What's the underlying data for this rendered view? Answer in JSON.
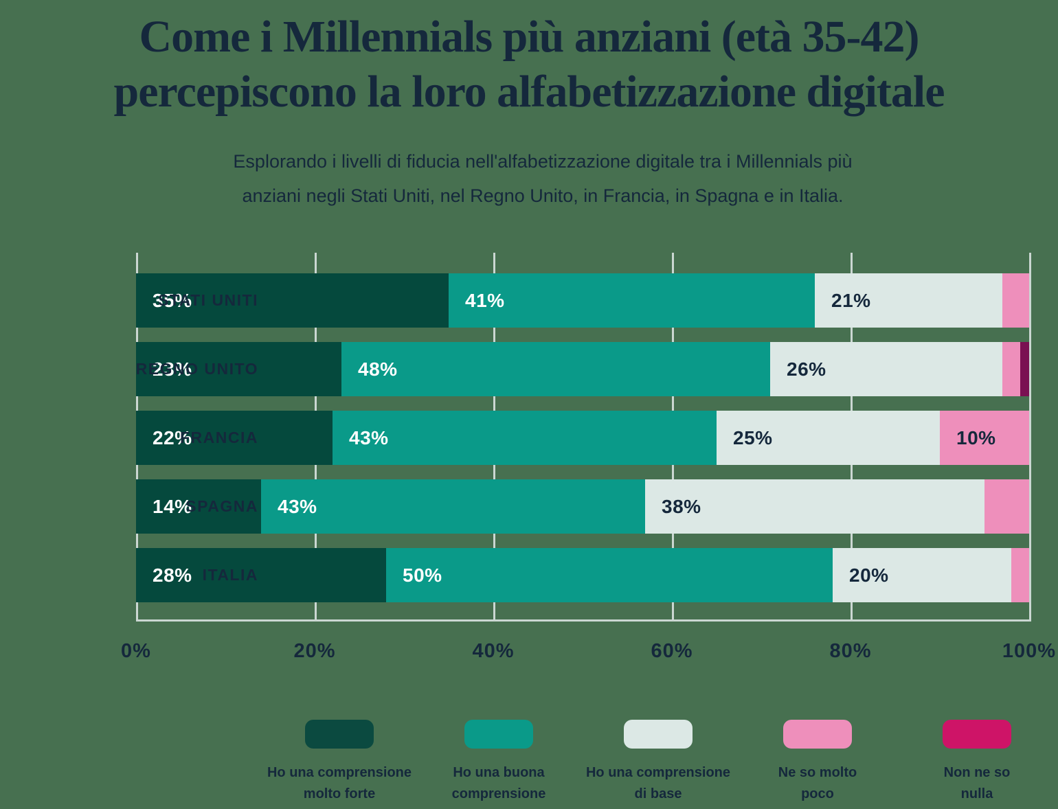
{
  "title": {
    "lines": [
      "Come i Millennials più anziani (età 35-42)",
      "percepiscono la loro alfabetizzazione digitale"
    ]
  },
  "subtitle": {
    "lines": [
      "Esplorando i livelli di fiducia nell'alfabetizzazione digitale tra i Millennials più",
      "anziani negli Stati Uniti, nel Regno Unito, in Francia, in Spagna e in Italia."
    ]
  },
  "colors": {
    "background": "#477050",
    "navy": "#15283C",
    "gridline": "#CBD7D2",
    "bar_label_on_dark": "#FFFFFF",
    "bar_label_on_light": "#15283C"
  },
  "chart_data": {
    "type": "bar",
    "orientation": "horizontal",
    "stacked": true,
    "grid": true,
    "legend_position": "bottom",
    "value_suffix": "%",
    "label_min_value": 10,
    "categories": [
      "STATI UNITI",
      "REGNO UNITO",
      "FRANCIA",
      "SPAGNA",
      "ITALIA"
    ],
    "series": [
      {
        "name": "Ho una comprensione molto forte",
        "color": "#05493D",
        "label_color": "#FFFFFF",
        "values": [
          35,
          23,
          22,
          14,
          28
        ]
      },
      {
        "name": "Ho una buona comprensione",
        "color": "#0A9A89",
        "label_color": "#FFFFFF",
        "values": [
          41,
          48,
          43,
          43,
          50
        ]
      },
      {
        "name": "Ho una comprensione di base",
        "color": "#DCE8E5",
        "label_color": "#15283C",
        "values": [
          21,
          26,
          25,
          38,
          20
        ]
      },
      {
        "name": "Ne so molto poco",
        "color": "#EE8FBB",
        "label_color": "#15283C",
        "values": [
          3,
          2,
          10,
          5,
          2
        ]
      },
      {
        "name": "Non ne so nulla",
        "color": "#7A1152",
        "label_color": "#FFFFFF",
        "values": [
          0,
          1,
          0,
          0,
          0
        ]
      }
    ],
    "x_axis": {
      "range": [
        0,
        100
      ],
      "tick_values": [
        0,
        20,
        40,
        60,
        80,
        100
      ],
      "tick_labels": [
        "0%",
        "20%",
        "40%",
        "60%",
        "80%",
        "100%"
      ]
    }
  },
  "legend": {
    "items": [
      {
        "color": "#0B4A40",
        "label_lines": [
          "Ho una comprensione",
          "molto forte"
        ]
      },
      {
        "color": "#0A9A89",
        "label_lines": [
          "Ho una buona",
          "comprensione"
        ]
      },
      {
        "color": "#DCE8E5",
        "label_lines": [
          "Ho una comprensione",
          "di base"
        ]
      },
      {
        "color": "#EE8FBB",
        "label_lines": [
          "Ne so molto",
          "poco"
        ]
      },
      {
        "color": "#CE1467",
        "label_lines": [
          "Non ne so",
          "nulla"
        ]
      }
    ]
  }
}
